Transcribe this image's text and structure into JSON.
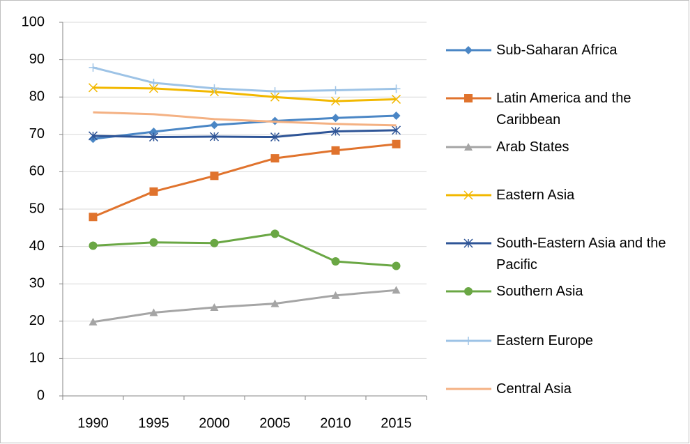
{
  "chart_data": {
    "type": "line",
    "categories": [
      "1990",
      "1995",
      "2000",
      "2005",
      "2010",
      "2015"
    ],
    "ylim": [
      0,
      100
    ],
    "yticks": [
      0,
      10,
      20,
      30,
      40,
      50,
      60,
      70,
      80,
      90,
      100
    ],
    "grid": true,
    "legend": "right",
    "series": [
      {
        "name": "Sub-Saharan Africa",
        "color": "#4a86c5",
        "marker": "diamond",
        "values": [
          68.8,
          70.7,
          72.5,
          73.6,
          74.4,
          75.0
        ]
      },
      {
        "name": "Latin America and the Caribbean",
        "color": "#e0732d",
        "marker": "square",
        "values": [
          47.9,
          54.7,
          58.9,
          63.6,
          65.7,
          67.4
        ]
      },
      {
        "name": "Arab States",
        "color": "#a5a5a5",
        "marker": "triangle",
        "values": [
          19.8,
          22.3,
          23.7,
          24.7,
          26.9,
          28.3
        ]
      },
      {
        "name": "Eastern Asia",
        "color": "#f2b800",
        "marker": "x",
        "values": [
          82.5,
          82.3,
          81.4,
          80.0,
          78.9,
          79.4
        ]
      },
      {
        "name": "South-Eastern Asia and the Pacific",
        "color": "#2f5597",
        "marker": "star",
        "values": [
          69.6,
          69.3,
          69.4,
          69.3,
          70.8,
          71.1
        ]
      },
      {
        "name": "Southern Asia",
        "color": "#6aa744",
        "marker": "circle",
        "values": [
          40.2,
          41.1,
          40.9,
          43.4,
          36.0,
          34.8
        ]
      },
      {
        "name": "Eastern Europe",
        "color": "#9dc3e6",
        "marker": "plus",
        "values": [
          87.9,
          83.8,
          82.3,
          81.5,
          81.8,
          82.2
        ]
      },
      {
        "name": "Central Asia",
        "color": "#f4b183",
        "marker": "none",
        "values": [
          75.9,
          75.4,
          74.1,
          73.4,
          72.8,
          72.4
        ]
      }
    ]
  }
}
